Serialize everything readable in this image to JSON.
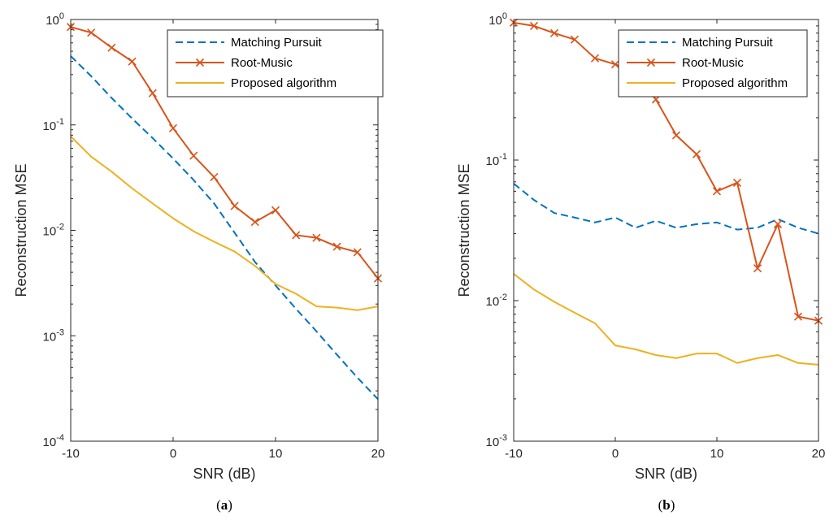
{
  "chart_data": [
    {
      "type": "line",
      "caption_letter": "a",
      "xlabel": "SNR (dB)",
      "ylabel": "Reconstruction MSE",
      "yscale": "log",
      "xlim": [
        -10,
        20
      ],
      "ylim": [
        0.0001,
        1
      ],
      "xticks": [
        -10,
        0,
        10,
        20
      ],
      "yticks": [
        {
          "value": 0.0001,
          "base": "10",
          "exp": "-4"
        },
        {
          "value": 0.001,
          "base": "10",
          "exp": "-3"
        },
        {
          "value": 0.01,
          "base": "10",
          "exp": "-2"
        },
        {
          "value": 0.1,
          "base": "10",
          "exp": "-1"
        },
        {
          "value": 1,
          "base": "10",
          "exp": "0"
        }
      ],
      "grid": false,
      "legend": "top-right",
      "series": [
        {
          "name": "Matching Pursuit",
          "color": "#0072bd",
          "style": "dashed",
          "marker": "none",
          "x": [
            -10,
            -8,
            -6,
            -4,
            -2,
            0,
            2,
            4,
            6,
            8,
            10,
            12,
            14,
            16,
            18,
            20
          ],
          "y": [
            0.45,
            0.29,
            0.18,
            0.115,
            0.075,
            0.048,
            0.03,
            0.018,
            0.0095,
            0.005,
            0.003,
            0.0018,
            0.0011,
            0.00066,
            0.0004,
            0.00025
          ]
        },
        {
          "name": "Root-Music",
          "color": "#d95319",
          "style": "solid",
          "marker": "x",
          "x": [
            -10,
            -8,
            -6,
            -4,
            -2,
            0,
            2,
            4,
            6,
            8,
            10,
            12,
            14,
            16,
            18,
            20
          ],
          "y": [
            0.85,
            0.75,
            0.54,
            0.4,
            0.2,
            0.093,
            0.051,
            0.032,
            0.017,
            0.012,
            0.0155,
            0.009,
            0.0085,
            0.007,
            0.0062,
            0.0035
          ]
        },
        {
          "name": "Proposed algorithm",
          "color": "#edb120",
          "style": "solid",
          "marker": "none",
          "x": [
            -10,
            -8,
            -6,
            -4,
            -2,
            0,
            2,
            4,
            6,
            8,
            10,
            12,
            14,
            16,
            18,
            20
          ],
          "y": [
            0.078,
            0.05,
            0.036,
            0.025,
            0.018,
            0.013,
            0.0098,
            0.0078,
            0.0063,
            0.0046,
            0.0031,
            0.0025,
            0.0019,
            0.00185,
            0.00175,
            0.0019
          ]
        }
      ]
    },
    {
      "type": "line",
      "caption_letter": "b",
      "xlabel": "SNR (dB)",
      "ylabel": "Reconstruction MSE",
      "yscale": "log",
      "xlim": [
        -10,
        20
      ],
      "ylim": [
        0.001,
        1
      ],
      "xticks": [
        -10,
        0,
        10,
        20
      ],
      "yticks": [
        {
          "value": 0.001,
          "base": "10",
          "exp": "-3"
        },
        {
          "value": 0.01,
          "base": "10",
          "exp": "-2"
        },
        {
          "value": 0.1,
          "base": "10",
          "exp": "-1"
        },
        {
          "value": 1,
          "base": "10",
          "exp": "0"
        }
      ],
      "grid": false,
      "legend": "top-right",
      "series": [
        {
          "name": "Matching Pursuit",
          "color": "#0072bd",
          "style": "dashed",
          "marker": "none",
          "x": [
            -10,
            -8,
            -6,
            -4,
            -2,
            0,
            2,
            4,
            6,
            8,
            10,
            12,
            14,
            16,
            18,
            20
          ],
          "y": [
            0.068,
            0.052,
            0.042,
            0.039,
            0.036,
            0.039,
            0.033,
            0.037,
            0.033,
            0.035,
            0.036,
            0.032,
            0.033,
            0.038,
            0.033,
            0.03
          ]
        },
        {
          "name": "Root-Music",
          "color": "#d95319",
          "style": "solid",
          "marker": "x",
          "x": [
            -10,
            -8,
            -6,
            -4,
            -2,
            0,
            2,
            4,
            6,
            8,
            10,
            12,
            14,
            16,
            18,
            20
          ],
          "y": [
            0.95,
            0.9,
            0.8,
            0.72,
            0.53,
            0.48,
            0.42,
            0.27,
            0.15,
            0.11,
            0.06,
            0.069,
            0.017,
            0.035,
            0.0077,
            0.0072
          ]
        },
        {
          "name": "Proposed algorithm",
          "color": "#edb120",
          "style": "solid",
          "marker": "none",
          "x": [
            -10,
            -8,
            -6,
            -4,
            -2,
            0,
            2,
            4,
            6,
            8,
            10,
            12,
            14,
            16,
            18,
            20
          ],
          "y": [
            0.0155,
            0.012,
            0.0098,
            0.0082,
            0.0069,
            0.0048,
            0.0045,
            0.0041,
            0.0039,
            0.0042,
            0.0042,
            0.0036,
            0.0039,
            0.0041,
            0.0036,
            0.0035
          ]
        }
      ]
    }
  ]
}
